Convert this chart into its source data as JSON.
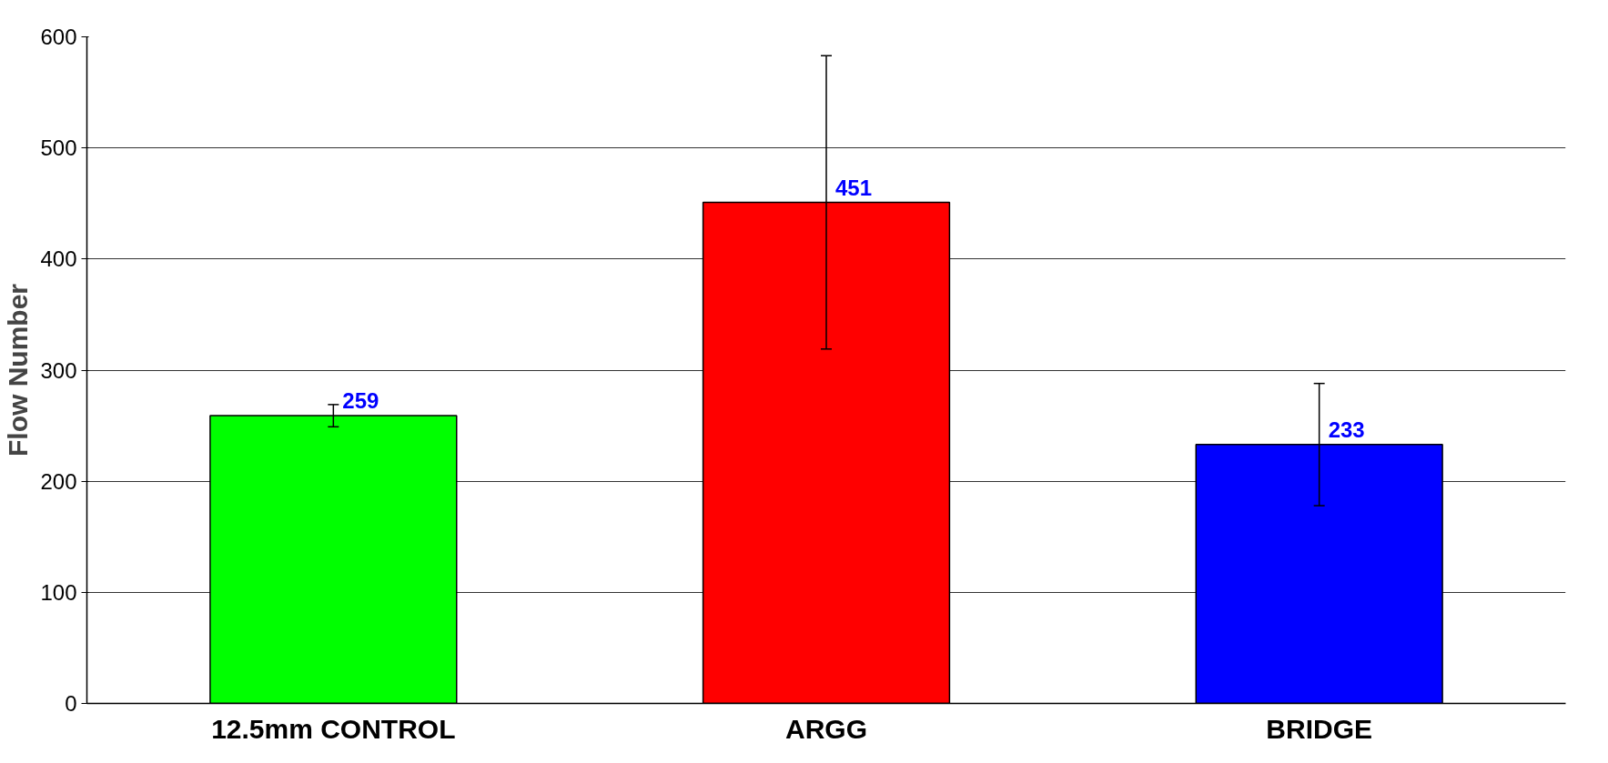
{
  "chart_data": {
    "type": "bar",
    "ylabel": "Flow Number",
    "categories": [
      "12.5mm CONTROL",
      "ARGG",
      "BRIDGE"
    ],
    "values": [
      259,
      451,
      233
    ],
    "colors": [
      "#00ff00",
      "#ff0000",
      "#0000ff"
    ],
    "errors": [
      10,
      132,
      55
    ],
    "data_labels": true,
    "ylim": [
      0,
      600
    ],
    "yticks": [
      0,
      100,
      200,
      300,
      400,
      500,
      600
    ],
    "grid": "y"
  }
}
